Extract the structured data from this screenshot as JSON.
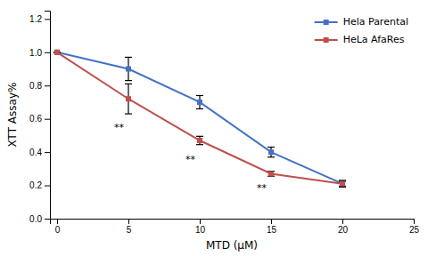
{
  "chart_data": {
    "type": "line",
    "x": [
      0,
      5,
      10,
      15,
      20
    ],
    "series": [
      {
        "name": "Hela Parental",
        "color": "#4472C4",
        "marker": "square",
        "values": [
          1.0,
          0.9,
          0.7,
          0.4,
          0.21
        ],
        "errors": [
          0.0,
          0.07,
          0.04,
          0.03,
          0.02
        ]
      },
      {
        "name": "HeLa AfaRes",
        "color": "#C0504D",
        "marker": "square",
        "values": [
          1.0,
          0.72,
          0.47,
          0.27,
          0.21
        ],
        "errors": [
          0.0,
          0.09,
          0.025,
          0.015,
          0.015
        ]
      }
    ],
    "x_label": "MTD (μM)",
    "y_label": "XTT Assay%",
    "xlim": [
      -0.5,
      25
    ],
    "ylim": [
      0,
      1.25
    ],
    "xticks": [
      0,
      5,
      10,
      15,
      20,
      25
    ],
    "yticks": [
      {
        "value": 0,
        "label": "0.0"
      },
      0.2,
      0.4,
      0.6,
      0.8,
      {
        "value": 1.0,
        "label": "1.0"
      },
      1.2
    ],
    "annotations": [
      {
        "text": "**",
        "x": 4.0,
        "y": 0.57
      },
      {
        "text": "**",
        "x": 9.0,
        "y": 0.38
      },
      {
        "text": "**",
        "x": 14.0,
        "y": 0.21
      }
    ],
    "legend": "upper right",
    "grid": false
  }
}
